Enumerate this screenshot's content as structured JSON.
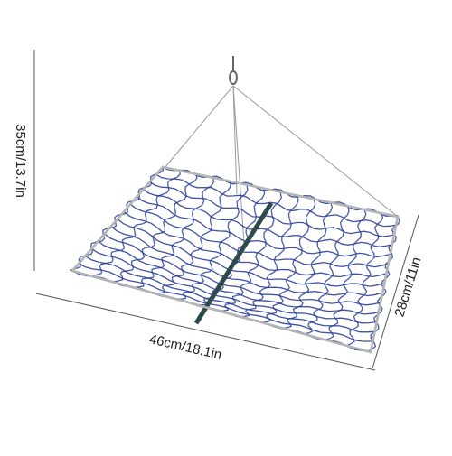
{
  "dimensions": {
    "height": "35cm/13.7in",
    "width": "46cm/18.1in",
    "depth": "28cm/11in"
  }
}
